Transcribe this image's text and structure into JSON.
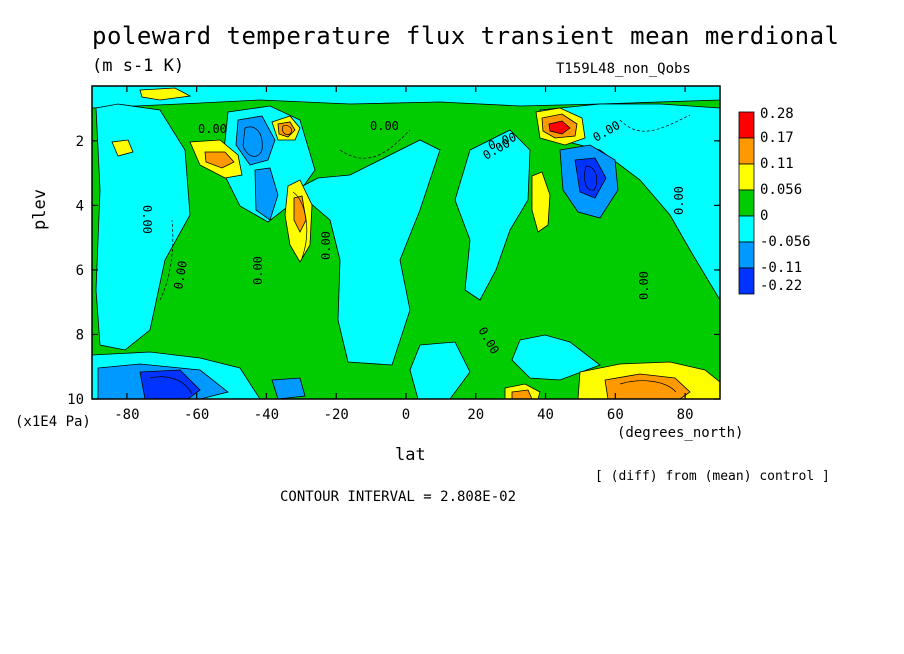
{
  "chart_data": {
    "type": "heatmap",
    "title": "poleward temperature flux transient mean merdional",
    "units": "(m s-1 K)",
    "run_label": "T159L48_non_Qobs",
    "xlabel": "lat",
    "x_units": "(degrees_north)",
    "ylabel": "plev",
    "y_units": "(x1E4 Pa)",
    "xlim": [
      -90,
      90
    ],
    "ylim": [
      10,
      0.3
    ],
    "x_ticks": [
      "-80",
      "-60",
      "-40",
      "-20",
      "0",
      "20",
      "40",
      "60",
      "80"
    ],
    "x_tick_values": [
      -80,
      -60,
      -40,
      -20,
      0,
      20,
      40,
      60,
      80
    ],
    "y_ticks": [
      "2",
      "4",
      "6",
      "8",
      "10"
    ],
    "y_tick_values": [
      2,
      4,
      6,
      8,
      10
    ],
    "contour_label": "0.00",
    "legend": {
      "labels": [
        "0.28",
        "0.17",
        "0.11",
        "0.056",
        "0",
        "-0.056",
        "-0.11",
        "-0.22"
      ],
      "colors": [
        "#ff0000",
        "#ff9900",
        "#ffff00",
        "#00cc00",
        "#00ffff",
        "#0099ff",
        "#0033ff"
      ]
    },
    "note": "[ (diff) from (mean) control ]",
    "contour_interval": "CONTOUR INTERVAL = 2.808E-02",
    "background_color": "#00cc00",
    "features": [
      {
        "lat": -90,
        "plev_top": 8.5,
        "plev_bottom": 10,
        "lat_end": -45,
        "level": "-0.056"
      },
      {
        "lat": -62,
        "plev": 9.6,
        "level": "-0.22"
      },
      {
        "lat": -52,
        "plev": 2.5,
        "level": "0.11"
      },
      {
        "lat": -47,
        "plev": 3.5,
        "level": "-0.056"
      },
      {
        "lat": -36,
        "plev": 1.5,
        "level": "0.17"
      },
      {
        "lat": -30,
        "plev": 4.2,
        "level": "0.11"
      },
      {
        "lat": 33,
        "plev": 3.8,
        "level": "0.11"
      },
      {
        "lat": 44,
        "plev": 1.5,
        "level": "0.28"
      },
      {
        "lat": 52,
        "plev": 2.9,
        "level": "-0.11"
      },
      {
        "lat": 65,
        "plev": 9.6,
        "level": "0.11"
      }
    ]
  }
}
